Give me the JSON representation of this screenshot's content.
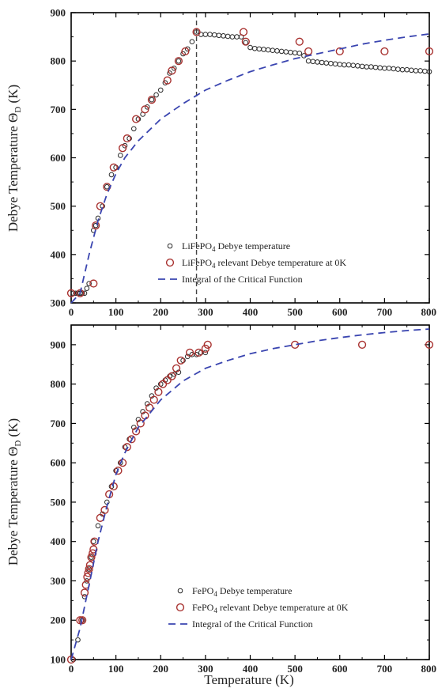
{
  "chart_data": [
    {
      "type": "scatter",
      "panel": "top",
      "xlim": [
        0,
        800
      ],
      "ylim": [
        300,
        900
      ],
      "xticks": [
        "0",
        "100",
        "200",
        "300",
        "400",
        "500",
        "600",
        "700",
        "800"
      ],
      "yticks": [
        "300",
        "400",
        "500",
        "600",
        "700",
        "800",
        "900"
      ],
      "ylabel": "Debye Temperature Θ",
      "ylabel_sub": "D",
      "ylabel_unit": " (K)",
      "xlabel": "",
      "vline_x": 280,
      "legend_position": "bottom-right",
      "legend": [
        {
          "pre": "LiFePO",
          "sub": "4",
          "post": " Debye temperature",
          "marker": "black-circle"
        },
        {
          "pre": "LiFePO",
          "sub": "4",
          "post": " relevant Debye temperature at 0K",
          "marker": "red-circle"
        },
        {
          "pre": "Integral of the Critical Function",
          "sub": "",
          "post": "",
          "marker": "blue-dash"
        }
      ],
      "series": [
        {
          "marker": "black-circle",
          "points": [
            [
              5,
              320
            ],
            [
              10,
              320
            ],
            [
              15,
              320
            ],
            [
              20,
              320
            ],
            [
              25,
              320
            ],
            [
              30,
              320
            ],
            [
              35,
              330
            ],
            [
              40,
              340
            ],
            [
              50,
              450
            ],
            [
              55,
              460
            ],
            [
              60,
              475
            ],
            [
              70,
              500
            ],
            [
              80,
              540
            ],
            [
              90,
              565
            ],
            [
              100,
              580
            ],
            [
              110,
              605
            ],
            [
              120,
              625
            ],
            [
              130,
              640
            ],
            [
              140,
              660
            ],
            [
              150,
              680
            ],
            [
              160,
              690
            ],
            [
              170,
              705
            ],
            [
              180,
              720
            ],
            [
              190,
              730
            ],
            [
              200,
              740
            ],
            [
              210,
              755
            ],
            [
              220,
              775
            ],
            [
              230,
              785
            ],
            [
              240,
              800
            ],
            [
              250,
              815
            ],
            [
              260,
              825
            ],
            [
              270,
              840
            ],
            [
              280,
              860
            ],
            [
              290,
              855
            ],
            [
              300,
              855
            ],
            [
              310,
              855
            ],
            [
              320,
              854
            ],
            [
              330,
              853
            ],
            [
              340,
              852
            ],
            [
              350,
              851
            ],
            [
              360,
              850
            ],
            [
              370,
              850
            ],
            [
              380,
              850
            ],
            [
              390,
              838
            ],
            [
              400,
              828
            ],
            [
              410,
              826
            ],
            [
              420,
              825
            ],
            [
              430,
              824
            ],
            [
              440,
              823
            ],
            [
              450,
              822
            ],
            [
              460,
              821
            ],
            [
              470,
              820
            ],
            [
              480,
              819
            ],
            [
              490,
              818
            ],
            [
              500,
              817
            ],
            [
              510,
              816
            ],
            [
              520,
              811
            ],
            [
              530,
              800
            ],
            [
              540,
              799
            ],
            [
              550,
              798
            ],
            [
              560,
              797
            ],
            [
              570,
              796
            ],
            [
              580,
              795
            ],
            [
              590,
              794
            ],
            [
              600,
              793
            ],
            [
              610,
              792
            ],
            [
              620,
              792
            ],
            [
              630,
              791
            ],
            [
              640,
              790
            ],
            [
              650,
              789
            ],
            [
              660,
              788
            ],
            [
              670,
              788
            ],
            [
              680,
              787
            ],
            [
              690,
              786
            ],
            [
              700,
              785
            ],
            [
              710,
              785
            ],
            [
              720,
              784
            ],
            [
              730,
              783
            ],
            [
              740,
              782
            ],
            [
              750,
              782
            ],
            [
              760,
              781
            ],
            [
              770,
              780
            ],
            [
              780,
              780
            ],
            [
              790,
              779
            ],
            [
              800,
              778
            ]
          ]
        },
        {
          "marker": "red-circle",
          "points": [
            [
              0,
              320
            ],
            [
              20,
              320
            ],
            [
              50,
              340
            ],
            [
              55,
              460
            ],
            [
              65,
              500
            ],
            [
              80,
              540
            ],
            [
              95,
              580
            ],
            [
              115,
              620
            ],
            [
              125,
              640
            ],
            [
              145,
              680
            ],
            [
              165,
              700
            ],
            [
              180,
              720
            ],
            [
              215,
              760
            ],
            [
              225,
              780
            ],
            [
              240,
              800
            ],
            [
              255,
              820
            ],
            [
              280,
              860
            ],
            [
              385,
              860
            ],
            [
              390,
              840
            ],
            [
              510,
              840
            ],
            [
              530,
              820
            ],
            [
              600,
              820
            ],
            [
              700,
              820
            ],
            [
              800,
              820
            ]
          ]
        },
        {
          "marker": "blue-dash",
          "points": [
            [
              0,
              300
            ],
            [
              20,
              320
            ],
            [
              40,
              400
            ],
            [
              60,
              470
            ],
            [
              80,
              525
            ],
            [
              100,
              567
            ],
            [
              120,
              600
            ],
            [
              150,
              635
            ],
            [
              200,
              680
            ],
            [
              250,
              712
            ],
            [
              300,
              740
            ],
            [
              350,
              760
            ],
            [
              400,
              778
            ],
            [
              450,
              792
            ],
            [
              500,
              805
            ],
            [
              550,
              815
            ],
            [
              600,
              825
            ],
            [
              650,
              835
            ],
            [
              700,
              843
            ],
            [
              750,
              850
            ],
            [
              800,
              856
            ]
          ]
        }
      ]
    },
    {
      "type": "scatter",
      "panel": "bottom",
      "xlim": [
        0,
        800
      ],
      "ylim": [
        100,
        950
      ],
      "xticks": [
        "0",
        "100",
        "200",
        "300",
        "400",
        "500",
        "600",
        "700",
        "800"
      ],
      "yticks": [
        "100",
        "200",
        "300",
        "400",
        "500",
        "600",
        "700",
        "800",
        "900"
      ],
      "ylabel": "Debye Temperature Θ",
      "ylabel_sub": "D",
      "ylabel_unit": " (K)",
      "xlabel": "Temperature (K)",
      "legend_position": "bottom-center",
      "legend": [
        {
          "pre": "FePO",
          "sub": "4",
          "post": " Debye temperature",
          "marker": "black-circle"
        },
        {
          "pre": "FePO",
          "sub": "4",
          "post": " relevant Debye temperature at 0K",
          "marker": "red-circle"
        },
        {
          "pre": "Integral of the Critical Function",
          "sub": "",
          "post": "",
          "marker": "blue-dash"
        }
      ],
      "series": [
        {
          "marker": "black-circle",
          "points": [
            [
              5,
              100
            ],
            [
              15,
              150
            ],
            [
              25,
              200
            ],
            [
              30,
              260
            ],
            [
              35,
              300
            ],
            [
              40,
              330
            ],
            [
              45,
              360
            ],
            [
              50,
              400
            ],
            [
              60,
              440
            ],
            [
              70,
              470
            ],
            [
              80,
              500
            ],
            [
              90,
              540
            ],
            [
              100,
              580
            ],
            [
              110,
              600
            ],
            [
              120,
              640
            ],
            [
              130,
              660
            ],
            [
              140,
              690
            ],
            [
              150,
              710
            ],
            [
              160,
              730
            ],
            [
              170,
              750
            ],
            [
              180,
              770
            ],
            [
              190,
              790
            ],
            [
              200,
              800
            ],
            [
              210,
              810
            ],
            [
              220,
              820
            ],
            [
              230,
              825
            ],
            [
              240,
              830
            ],
            [
              250,
              860
            ],
            [
              260,
              870
            ],
            [
              270,
              875
            ],
            [
              280,
              875
            ],
            [
              290,
              880
            ],
            [
              300,
              880
            ]
          ]
        },
        {
          "marker": "red-circle",
          "points": [
            [
              0,
              100
            ],
            [
              20,
              200
            ],
            [
              25,
              200
            ],
            [
              30,
              270
            ],
            [
              33,
              290
            ],
            [
              36,
              310
            ],
            [
              38,
              320
            ],
            [
              40,
              330
            ],
            [
              42,
              340
            ],
            [
              45,
              360
            ],
            [
              48,
              370
            ],
            [
              50,
              380
            ],
            [
              52,
              400
            ],
            [
              65,
              460
            ],
            [
              75,
              480
            ],
            [
              85,
              520
            ],
            [
              95,
              540
            ],
            [
              105,
              580
            ],
            [
              115,
              600
            ],
            [
              125,
              640
            ],
            [
              135,
              660
            ],
            [
              145,
              680
            ],
            [
              155,
              700
            ],
            [
              165,
              720
            ],
            [
              175,
              740
            ],
            [
              185,
              760
            ],
            [
              195,
              780
            ],
            [
              205,
              800
            ],
            [
              215,
              810
            ],
            [
              225,
              820
            ],
            [
              235,
              840
            ],
            [
              245,
              860
            ],
            [
              265,
              880
            ],
            [
              285,
              880
            ],
            [
              300,
              890
            ],
            [
              305,
              900
            ],
            [
              500,
              900
            ],
            [
              650,
              900
            ],
            [
              800,
              900
            ]
          ]
        },
        {
          "marker": "blue-dash",
          "points": [
            [
              0,
              100
            ],
            [
              20,
              180
            ],
            [
              40,
              290
            ],
            [
              60,
              400
            ],
            [
              80,
              490
            ],
            [
              100,
              570
            ],
            [
              120,
              625
            ],
            [
              150,
              690
            ],
            [
              200,
              760
            ],
            [
              250,
              808
            ],
            [
              300,
              840
            ],
            [
              350,
              860
            ],
            [
              400,
              877
            ],
            [
              450,
              890
            ],
            [
              500,
              900
            ],
            [
              550,
              910
            ],
            [
              600,
              918
            ],
            [
              650,
              925
            ],
            [
              700,
              931
            ],
            [
              750,
              936
            ],
            [
              800,
              940
            ]
          ]
        }
      ]
    }
  ],
  "colors": {
    "black_marker": "#2a2a2a",
    "red_marker": "#a8312f",
    "blue_line": "#3a45b0",
    "vline": "#444444",
    "axis": "#000000"
  }
}
